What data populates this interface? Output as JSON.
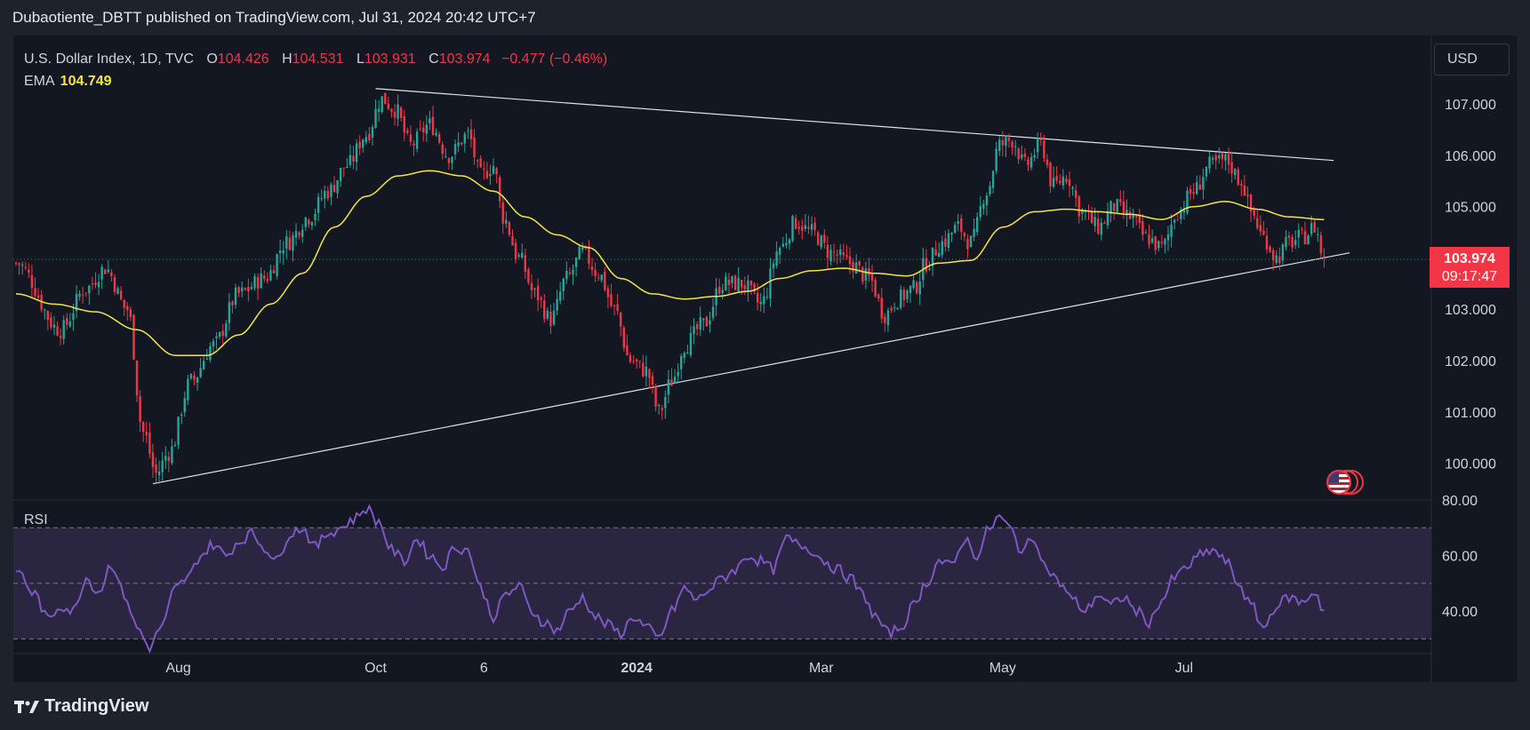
{
  "header": {
    "publisher_line": "Dubaotiente_DBTT published on TradingView.com, Jul 31, 2024 20:42 UTC+7"
  },
  "legend": {
    "symbol": "U.S. Dollar Index, 1D, TVC",
    "open_label": "O",
    "open": "104.426",
    "high_label": "H",
    "high": "104.531",
    "low_label": "L",
    "low": "103.931",
    "close_label": "C",
    "close": "103.974",
    "change": "−0.477 (−0.46%)",
    "ema_label": "EMA",
    "ema_value": "104.749"
  },
  "currency_button": "USD",
  "price_tag": {
    "price": "103.974",
    "countdown": "09:17:47"
  },
  "rsi": {
    "label": "RSI"
  },
  "footer": {
    "brand": "TradingView"
  },
  "colors": {
    "background": "#131722",
    "up": "#26a69a",
    "down": "#f23645",
    "ema": "#f5e642",
    "rsi_line": "#7e57c2",
    "rsi_band": "#2a2540",
    "trendline": "#e0e3eb"
  },
  "chart_data": [
    {
      "type": "candlestick",
      "title": "U.S. Dollar Index, 1D, TVC",
      "x_tick_labels": [
        "Aug",
        "Oct",
        "6",
        "2024",
        "Mar",
        "May",
        "Jul"
      ],
      "y_tick_labels": [
        "107.000",
        "106.000",
        "105.000",
        "103.000",
        "102.000",
        "101.000",
        "100.000"
      ],
      "ylim": [
        99.3,
        108.3
      ],
      "last_price": 103.974,
      "anchors": [
        {
          "x": 0,
          "y": 103.9
        },
        {
          "x": 14,
          "y": 102.6
        },
        {
          "x": 22,
          "y": 103.4
        },
        {
          "x": 28,
          "y": 103.8
        },
        {
          "x": 35,
          "y": 103.0
        },
        {
          "x": 40,
          "y": 100.6
        },
        {
          "x": 44,
          "y": 99.8
        },
        {
          "x": 48,
          "y": 100.2
        },
        {
          "x": 55,
          "y": 101.6
        },
        {
          "x": 62,
          "y": 102.3
        },
        {
          "x": 70,
          "y": 103.3
        },
        {
          "x": 78,
          "y": 103.6
        },
        {
          "x": 85,
          "y": 104.3
        },
        {
          "x": 92,
          "y": 104.8
        },
        {
          "x": 98,
          "y": 105.3
        },
        {
          "x": 104,
          "y": 105.8
        },
        {
          "x": 110,
          "y": 106.4
        },
        {
          "x": 115,
          "y": 107.1
        },
        {
          "x": 119,
          "y": 106.9
        },
        {
          "x": 124,
          "y": 106.2
        },
        {
          "x": 130,
          "y": 106.6
        },
        {
          "x": 136,
          "y": 106.0
        },
        {
          "x": 142,
          "y": 106.4
        },
        {
          "x": 146,
          "y": 105.6
        },
        {
          "x": 150,
          "y": 105.8
        },
        {
          "x": 153,
          "y": 104.8
        },
        {
          "x": 158,
          "y": 104.0
        },
        {
          "x": 163,
          "y": 103.3
        },
        {
          "x": 168,
          "y": 102.8
        },
        {
          "x": 173,
          "y": 103.6
        },
        {
          "x": 178,
          "y": 104.1
        },
        {
          "x": 183,
          "y": 103.7
        },
        {
          "x": 188,
          "y": 103.0
        },
        {
          "x": 193,
          "y": 102.0
        },
        {
          "x": 198,
          "y": 101.8
        },
        {
          "x": 202,
          "y": 101.0
        },
        {
          "x": 206,
          "y": 101.6
        },
        {
          "x": 210,
          "y": 102.3
        },
        {
          "x": 216,
          "y": 102.7
        },
        {
          "x": 222,
          "y": 103.5
        },
        {
          "x": 228,
          "y": 103.5
        },
        {
          "x": 234,
          "y": 103.1
        },
        {
          "x": 240,
          "y": 104.2
        },
        {
          "x": 245,
          "y": 104.7
        },
        {
          "x": 250,
          "y": 104.5
        },
        {
          "x": 256,
          "y": 104.1
        },
        {
          "x": 262,
          "y": 103.9
        },
        {
          "x": 268,
          "y": 103.6
        },
        {
          "x": 273,
          "y": 102.9
        },
        {
          "x": 277,
          "y": 103.2
        },
        {
          "x": 282,
          "y": 103.4
        },
        {
          "x": 286,
          "y": 103.9
        },
        {
          "x": 291,
          "y": 104.3
        },
        {
          "x": 296,
          "y": 104.6
        },
        {
          "x": 300,
          "y": 104.3
        },
        {
          "x": 305,
          "y": 105.3
        },
        {
          "x": 309,
          "y": 106.2
        },
        {
          "x": 313,
          "y": 106.3
        },
        {
          "x": 317,
          "y": 105.8
        },
        {
          "x": 322,
          "y": 106.2
        },
        {
          "x": 326,
          "y": 105.4
        },
        {
          "x": 330,
          "y": 105.6
        },
        {
          "x": 335,
          "y": 104.9
        },
        {
          "x": 340,
          "y": 104.6
        },
        {
          "x": 345,
          "y": 105.0
        },
        {
          "x": 350,
          "y": 104.8
        },
        {
          "x": 355,
          "y": 104.4
        },
        {
          "x": 360,
          "y": 104.2
        },
        {
          "x": 365,
          "y": 104.9
        },
        {
          "x": 370,
          "y": 105.3
        },
        {
          "x": 375,
          "y": 105.8
        },
        {
          "x": 380,
          "y": 105.9
        },
        {
          "x": 385,
          "y": 105.5
        },
        {
          "x": 388,
          "y": 104.9
        },
        {
          "x": 392,
          "y": 104.4
        },
        {
          "x": 396,
          "y": 104.0
        },
        {
          "x": 400,
          "y": 104.3
        },
        {
          "x": 404,
          "y": 104.4
        },
        {
          "x": 408,
          "y": 104.6
        },
        {
          "x": 411,
          "y": 103.97
        }
      ],
      "ema_anchors": [
        {
          "x": 0,
          "y": 103.3
        },
        {
          "x": 12,
          "y": 103.1
        },
        {
          "x": 25,
          "y": 102.95
        },
        {
          "x": 38,
          "y": 102.6
        },
        {
          "x": 50,
          "y": 102.1
        },
        {
          "x": 60,
          "y": 102.1
        },
        {
          "x": 70,
          "y": 102.5
        },
        {
          "x": 80,
          "y": 103.1
        },
        {
          "x": 90,
          "y": 103.7
        },
        {
          "x": 100,
          "y": 104.6
        },
        {
          "x": 110,
          "y": 105.2
        },
        {
          "x": 120,
          "y": 105.6
        },
        {
          "x": 130,
          "y": 105.7
        },
        {
          "x": 140,
          "y": 105.6
        },
        {
          "x": 150,
          "y": 105.3
        },
        {
          "x": 160,
          "y": 104.8
        },
        {
          "x": 170,
          "y": 104.45
        },
        {
          "x": 180,
          "y": 104.2
        },
        {
          "x": 190,
          "y": 103.6
        },
        {
          "x": 200,
          "y": 103.3
        },
        {
          "x": 210,
          "y": 103.2
        },
        {
          "x": 220,
          "y": 103.25
        },
        {
          "x": 230,
          "y": 103.35
        },
        {
          "x": 240,
          "y": 103.6
        },
        {
          "x": 250,
          "y": 103.75
        },
        {
          "x": 260,
          "y": 103.8
        },
        {
          "x": 270,
          "y": 103.7
        },
        {
          "x": 280,
          "y": 103.65
        },
        {
          "x": 290,
          "y": 103.9
        },
        {
          "x": 300,
          "y": 103.95
        },
        {
          "x": 310,
          "y": 104.6
        },
        {
          "x": 320,
          "y": 104.9
        },
        {
          "x": 330,
          "y": 104.95
        },
        {
          "x": 340,
          "y": 104.9
        },
        {
          "x": 350,
          "y": 104.85
        },
        {
          "x": 360,
          "y": 104.75
        },
        {
          "x": 370,
          "y": 105.0
        },
        {
          "x": 380,
          "y": 105.1
        },
        {
          "x": 390,
          "y": 104.95
        },
        {
          "x": 400,
          "y": 104.8
        },
        {
          "x": 411,
          "y": 104.749
        }
      ],
      "trendlines": [
        {
          "from": {
            "x": 113,
            "y": 107.3
          },
          "to": {
            "x": 414,
            "y": 105.9
          }
        },
        {
          "from": {
            "x": 43,
            "y": 99.6
          },
          "to": {
            "x": 419,
            "y": 104.1
          }
        }
      ]
    },
    {
      "type": "line",
      "title": "RSI",
      "y_tick_labels": [
        "80.00",
        "60.00",
        "40.00"
      ],
      "ylim": [
        25,
        80
      ],
      "bands": [
        70,
        50,
        30
      ],
      "anchors": [
        {
          "x": 0,
          "y": 55
        },
        {
          "x": 6,
          "y": 46
        },
        {
          "x": 10,
          "y": 37
        },
        {
          "x": 14,
          "y": 42
        },
        {
          "x": 18,
          "y": 40
        },
        {
          "x": 22,
          "y": 52
        },
        {
          "x": 26,
          "y": 47
        },
        {
          "x": 30,
          "y": 57
        },
        {
          "x": 34,
          "y": 46
        },
        {
          "x": 38,
          "y": 34
        },
        {
          "x": 42,
          "y": 27
        },
        {
          "x": 46,
          "y": 35
        },
        {
          "x": 50,
          "y": 48
        },
        {
          "x": 54,
          "y": 52
        },
        {
          "x": 58,
          "y": 60
        },
        {
          "x": 62,
          "y": 64
        },
        {
          "x": 66,
          "y": 60
        },
        {
          "x": 70,
          "y": 65
        },
        {
          "x": 74,
          "y": 68
        },
        {
          "x": 78,
          "y": 63
        },
        {
          "x": 82,
          "y": 58
        },
        {
          "x": 86,
          "y": 68
        },
        {
          "x": 90,
          "y": 70
        },
        {
          "x": 94,
          "y": 63
        },
        {
          "x": 98,
          "y": 68
        },
        {
          "x": 102,
          "y": 70
        },
        {
          "x": 106,
          "y": 73
        },
        {
          "x": 110,
          "y": 77
        },
        {
          "x": 114,
          "y": 72
        },
        {
          "x": 118,
          "y": 62
        },
        {
          "x": 122,
          "y": 58
        },
        {
          "x": 126,
          "y": 66
        },
        {
          "x": 130,
          "y": 60
        },
        {
          "x": 134,
          "y": 56
        },
        {
          "x": 138,
          "y": 63
        },
        {
          "x": 142,
          "y": 62
        },
        {
          "x": 146,
          "y": 48
        },
        {
          "x": 150,
          "y": 38
        },
        {
          "x": 154,
          "y": 46
        },
        {
          "x": 158,
          "y": 49
        },
        {
          "x": 162,
          "y": 40
        },
        {
          "x": 166,
          "y": 36
        },
        {
          "x": 170,
          "y": 33
        },
        {
          "x": 174,
          "y": 40
        },
        {
          "x": 178,
          "y": 45
        },
        {
          "x": 182,
          "y": 38
        },
        {
          "x": 186,
          "y": 35
        },
        {
          "x": 190,
          "y": 32
        },
        {
          "x": 194,
          "y": 38
        },
        {
          "x": 198,
          "y": 34
        },
        {
          "x": 202,
          "y": 30
        },
        {
          "x": 206,
          "y": 40
        },
        {
          "x": 210,
          "y": 48
        },
        {
          "x": 214,
          "y": 44
        },
        {
          "x": 218,
          "y": 48
        },
        {
          "x": 222,
          "y": 52
        },
        {
          "x": 226,
          "y": 55
        },
        {
          "x": 230,
          "y": 60
        },
        {
          "x": 234,
          "y": 58
        },
        {
          "x": 238,
          "y": 55
        },
        {
          "x": 242,
          "y": 66
        },
        {
          "x": 246,
          "y": 64
        },
        {
          "x": 250,
          "y": 62
        },
        {
          "x": 254,
          "y": 58
        },
        {
          "x": 258,
          "y": 55
        },
        {
          "x": 262,
          "y": 52
        },
        {
          "x": 266,
          "y": 46
        },
        {
          "x": 270,
          "y": 38
        },
        {
          "x": 274,
          "y": 32
        },
        {
          "x": 278,
          "y": 34
        },
        {
          "x": 282,
          "y": 42
        },
        {
          "x": 286,
          "y": 50
        },
        {
          "x": 290,
          "y": 58
        },
        {
          "x": 294,
          "y": 56
        },
        {
          "x": 298,
          "y": 66
        },
        {
          "x": 302,
          "y": 60
        },
        {
          "x": 306,
          "y": 70
        },
        {
          "x": 309,
          "y": 74
        },
        {
          "x": 312,
          "y": 70
        },
        {
          "x": 316,
          "y": 62
        },
        {
          "x": 320,
          "y": 66
        },
        {
          "x": 324,
          "y": 55
        },
        {
          "x": 328,
          "y": 50
        },
        {
          "x": 332,
          "y": 44
        },
        {
          "x": 336,
          "y": 40
        },
        {
          "x": 340,
          "y": 46
        },
        {
          "x": 344,
          "y": 42
        },
        {
          "x": 348,
          "y": 45
        },
        {
          "x": 352,
          "y": 40
        },
        {
          "x": 356,
          "y": 36
        },
        {
          "x": 360,
          "y": 44
        },
        {
          "x": 364,
          "y": 52
        },
        {
          "x": 368,
          "y": 56
        },
        {
          "x": 372,
          "y": 60
        },
        {
          "x": 376,
          "y": 62
        },
        {
          "x": 380,
          "y": 58
        },
        {
          "x": 384,
          "y": 50
        },
        {
          "x": 388,
          "y": 42
        },
        {
          "x": 392,
          "y": 34
        },
        {
          "x": 396,
          "y": 42
        },
        {
          "x": 400,
          "y": 45
        },
        {
          "x": 404,
          "y": 43
        },
        {
          "x": 408,
          "y": 47
        },
        {
          "x": 411,
          "y": 40
        }
      ]
    }
  ]
}
